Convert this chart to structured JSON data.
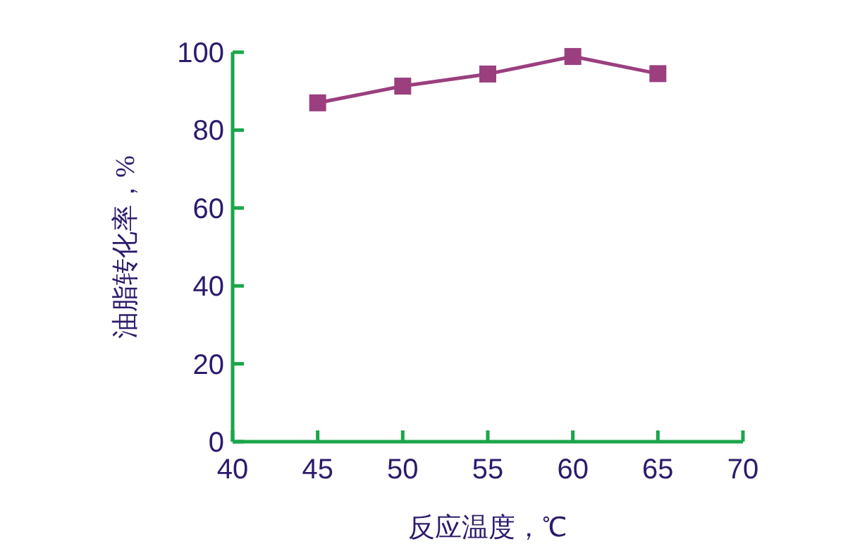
{
  "chart_data": {
    "type": "line",
    "xlabel": "反应温度，℃",
    "ylabel": "油脂转化率，%",
    "x": [
      45,
      50,
      55,
      60,
      65
    ],
    "series": [
      {
        "color": "#9b3f7f",
        "values": [
          87,
          91.3,
          94.4,
          98.9,
          94.5
        ]
      }
    ],
    "xlim": [
      40,
      70
    ],
    "xticks": [
      40,
      45,
      50,
      55,
      60,
      65,
      70
    ],
    "ylim": [
      0,
      100
    ],
    "yticks": [
      0,
      20,
      40,
      60,
      80,
      100
    ],
    "marker": "square",
    "line_style": "solid",
    "grid": false
  }
}
